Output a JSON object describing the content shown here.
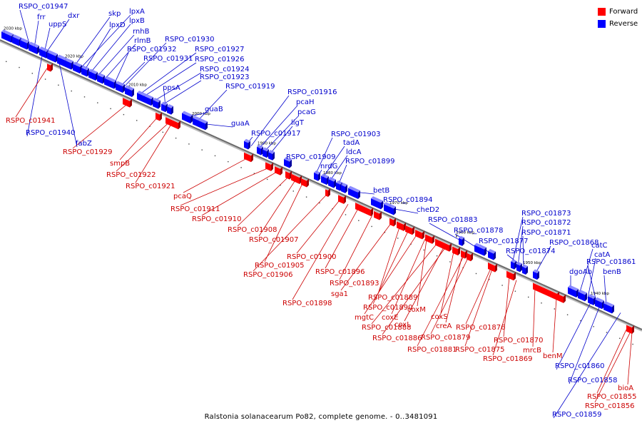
{
  "legend": {
    "forward_label": "Forward",
    "reverse_label": "Reverse",
    "forward_color": "#ff0000",
    "reverse_color": "#0000ff"
  },
  "footer": {
    "caption": "Ralstonia solanacearum Po82, complete genome. - 0..3481091"
  },
  "axis": {
    "ticks": [
      {
        "label": "2030 kbp",
        "kbp": 2030
      },
      {
        "label": "2020 kbp",
        "kbp": 2020
      },
      {
        "label": "2010 kbp",
        "kbp": 2010
      },
      {
        "label": "2000 kbp",
        "kbp": 2000
      },
      {
        "label": "1990 kbp",
        "kbp": 1990
      },
      {
        "label": "1980 kbp",
        "kbp": 1980
      },
      {
        "label": "1970 kbp",
        "kbp": 1970
      },
      {
        "label": "1960 kbp",
        "kbp": 1960
      },
      {
        "label": "1950 kbp",
        "kbp": 1950
      },
      {
        "label": "1940 kbp",
        "kbp": 1940
      }
    ]
  },
  "reverse_genes": [
    "RSPO_c01947",
    "frr",
    "dxr",
    "uppS",
    "skp",
    "lpxA",
    "lpxD",
    "lpxB",
    "rnhB",
    "rlmB",
    "RSPO_c01932",
    "RSPO_c01931",
    "RSPO_c01930",
    "RSPO_c01927",
    "RSPO_c01926",
    "RSPO_c01924",
    "RSPO_c01923",
    "ppsA",
    "RSPO_c01919",
    "guaB",
    "guaA",
    "RSPO_c01916",
    "pcaH",
    "pcaG",
    "ligT",
    "RSPO_c01917",
    "RSPO_c01903",
    "tadA",
    "ldcA",
    "RSPO_c01909",
    "nrdG",
    "RSPO_c01899",
    "betB",
    "RSPO_c01894",
    "cheD2",
    "RSPO_c01883",
    "RSPO_c01878",
    "RSPO_c01877",
    "RSPO_c01873",
    "RSPO_c01872",
    "RSPO_c01871",
    "RSPO_c01868",
    "RSPO_c01874",
    "catC",
    "catA",
    "RSPO_c01861",
    "dgoAb",
    "benB",
    "RSPO_c01940",
    "fabZ",
    "RSPO_c01860",
    "RSPO_c01858",
    "RSPO_c01859"
  ],
  "forward_genes": [
    "RSPO_c01941",
    "RSPO_c01929",
    "smpB",
    "RSPO_c01922",
    "RSPO_c01921",
    "pcaQ",
    "RSPO_c01911",
    "RSPO_c01910",
    "RSPO_c01908",
    "RSPO_c01907",
    "RSPO_c01900",
    "RSPO_c01905",
    "RSPO_c01906",
    "RSPO_c01896",
    "RSPO_c01893",
    "sga1",
    "RSPO_c01898",
    "RSPO_c01889",
    "RSPO_c01890",
    "mgtC",
    "coxE",
    "coxM",
    "RSPO_c01888",
    "coxL",
    "coxS",
    "creA",
    "RSPO_c01886",
    "RSPO_c01879",
    "RSPO_c01876",
    "RSPO_c01881",
    "RSPO_c01875",
    "RSPO_c01870",
    "mrcB",
    "RSPO_c01869",
    "benM",
    "RSPO_c01855",
    "RSPO_c01856",
    "bioA"
  ]
}
